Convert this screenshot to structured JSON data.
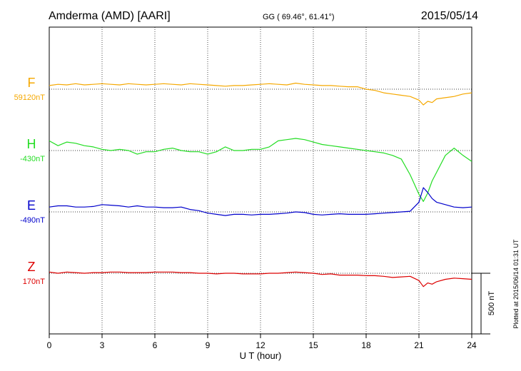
{
  "header": {
    "station": "Amderma (AMD)  [AARI]",
    "coords": "GG ( 69.46°,  61.41°)",
    "date": "2015/05/14"
  },
  "footer": {
    "plotted": "Plotted at 2015/06/14 01:31  UT"
  },
  "chart_data": {
    "type": "line",
    "xlabel": "U T (hour)",
    "xlim": [
      0,
      24
    ],
    "xticks": [
      "0",
      "3",
      "6",
      "9",
      "12",
      "15",
      "18",
      "21",
      "24"
    ],
    "scale_bar": "500 nT",
    "grid": "dotted vertical every 3 h; dotted horizontal baseline per trace",
    "series": [
      {
        "name": "F",
        "baseline_label": "59120nT",
        "color": "#f5a800",
        "x": [
          0,
          0.5,
          1,
          1.5,
          2,
          2.5,
          3,
          3.5,
          4,
          4.5,
          5,
          5.5,
          6,
          6.5,
          7,
          7.5,
          8,
          8.5,
          9,
          9.5,
          10,
          10.5,
          11,
          11.5,
          12,
          12.5,
          13,
          13.5,
          14,
          14.5,
          15,
          15.5,
          16,
          16.5,
          17,
          17.5,
          18,
          18.5,
          19,
          19.5,
          20,
          20.5,
          21,
          21.25,
          21.5,
          21.75,
          22,
          22.5,
          23,
          23.5,
          24
        ],
        "y": [
          30,
          40,
          35,
          45,
          35,
          40,
          45,
          40,
          35,
          45,
          40,
          35,
          40,
          45,
          40,
          35,
          45,
          40,
          35,
          30,
          25,
          30,
          30,
          35,
          40,
          45,
          40,
          35,
          50,
          40,
          35,
          30,
          30,
          25,
          20,
          20,
          0,
          -10,
          -30,
          -40,
          -50,
          -60,
          -90,
          -130,
          -100,
          -110,
          -80,
          -70,
          -60,
          -40,
          -30
        ]
      },
      {
        "name": "H",
        "baseline_label": "-430nT",
        "color": "#22dd22",
        "x": [
          0,
          0.5,
          1,
          1.5,
          2,
          2.5,
          3,
          3.5,
          4,
          4.5,
          5,
          5.5,
          6,
          6.5,
          7,
          7.5,
          8,
          8.5,
          9,
          9.5,
          10,
          10.5,
          11,
          11.5,
          12,
          12.5,
          13,
          13.5,
          14,
          14.5,
          15,
          15.5,
          16,
          16.5,
          17,
          17.5,
          18,
          18.5,
          19,
          19.5,
          20,
          20.5,
          21,
          21.25,
          21.5,
          21.75,
          22,
          22.5,
          23,
          23.5,
          24
        ],
        "y": [
          80,
          40,
          70,
          60,
          40,
          30,
          10,
          0,
          10,
          0,
          -30,
          -10,
          -10,
          10,
          20,
          0,
          -10,
          -10,
          -30,
          -10,
          30,
          0,
          0,
          10,
          10,
          30,
          80,
          90,
          100,
          90,
          70,
          50,
          40,
          30,
          20,
          10,
          0,
          -10,
          -20,
          -40,
          -70,
          -200,
          -360,
          -420,
          -350,
          -250,
          -180,
          -40,
          20,
          -40,
          -90
        ]
      },
      {
        "name": "E",
        "baseline_label": "-490nT",
        "color": "#0000cc",
        "x": [
          0,
          0.5,
          1,
          1.5,
          2,
          2.5,
          3,
          3.5,
          4,
          4.5,
          5,
          5.5,
          6,
          6.5,
          7,
          7.5,
          8,
          8.5,
          9,
          9.5,
          10,
          10.5,
          11,
          11.5,
          12,
          12.5,
          13,
          13.5,
          14,
          14.5,
          15,
          15.5,
          16,
          16.5,
          17,
          17.5,
          18,
          18.5,
          19,
          19.5,
          20,
          20.5,
          21,
          21.25,
          21.5,
          21.75,
          22,
          22.5,
          23,
          23.5,
          24
        ],
        "y": [
          40,
          50,
          50,
          40,
          40,
          45,
          60,
          55,
          50,
          40,
          50,
          40,
          40,
          35,
          35,
          40,
          20,
          10,
          -10,
          -20,
          -30,
          -20,
          -20,
          -25,
          -20,
          -20,
          -15,
          -10,
          0,
          -5,
          -20,
          -25,
          -20,
          -15,
          -20,
          -20,
          -20,
          -15,
          -10,
          -5,
          0,
          5,
          80,
          200,
          160,
          110,
          80,
          60,
          40,
          35,
          40
        ]
      },
      {
        "name": "Z",
        "baseline_label": "170nT",
        "color": "#dd0000",
        "x": [
          0,
          0.5,
          1,
          1.5,
          2,
          2.5,
          3,
          3.5,
          4,
          4.5,
          5,
          5.5,
          6,
          6.5,
          7,
          7.5,
          8,
          8.5,
          9,
          9.5,
          10,
          10.5,
          11,
          11.5,
          12,
          12.5,
          13,
          13.5,
          14,
          14.5,
          15,
          15.5,
          16,
          16.5,
          17,
          17.5,
          18,
          18.5,
          19,
          19.5,
          20,
          20.5,
          21,
          21.25,
          21.5,
          21.75,
          22,
          22.5,
          23,
          23.5,
          24
        ],
        "y": [
          10,
          0,
          10,
          5,
          0,
          5,
          5,
          10,
          10,
          5,
          5,
          5,
          10,
          10,
          10,
          5,
          5,
          0,
          0,
          -5,
          0,
          0,
          -5,
          -5,
          -5,
          0,
          0,
          5,
          10,
          5,
          0,
          -10,
          -5,
          -15,
          -15,
          -15,
          -20,
          -20,
          -25,
          -35,
          -30,
          -25,
          -60,
          -110,
          -80,
          -90,
          -70,
          -50,
          -40,
          -45,
          -50
        ]
      }
    ]
  }
}
